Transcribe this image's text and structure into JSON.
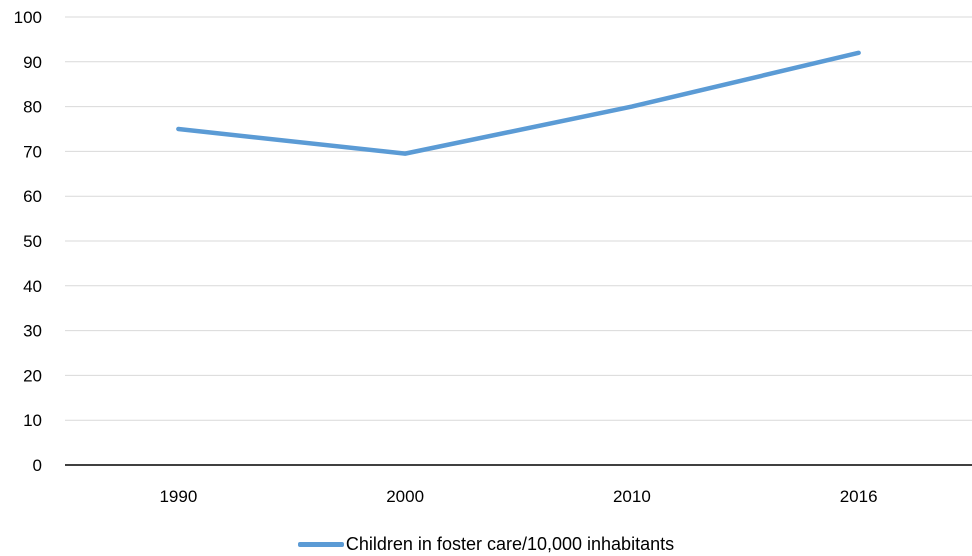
{
  "chart_data": {
    "type": "line",
    "categories": [
      "1990",
      "2000",
      "2010",
      "2016"
    ],
    "series": [
      {
        "name": "Children in foster care/10,000 inhabitants",
        "values": [
          75,
          69.5,
          80,
          92
        ],
        "color": "#5B9BD5"
      }
    ],
    "ylim": [
      0,
      100
    ],
    "yticks": [
      0,
      10,
      20,
      30,
      40,
      50,
      60,
      70,
      80,
      90,
      100
    ],
    "grid": true,
    "gridline_color": "#D9D9D9",
    "axis_color": "#000000",
    "legend_position": "bottom"
  }
}
